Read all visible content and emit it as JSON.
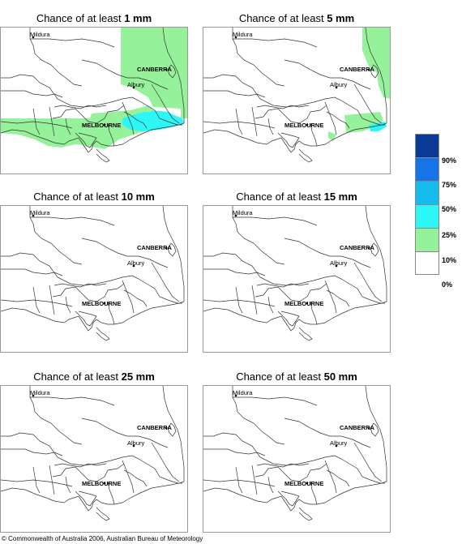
{
  "panels": [
    {
      "prefix": "Chance of at least ",
      "amount": "1 mm",
      "shading": [
        {
          "level": "10-25%",
          "polys": [
            [
              148,
              0,
              232,
              0,
              232,
              112,
              222,
              112,
              222,
              100,
              188,
              98,
              182,
              86,
              162,
              74,
              148,
              70
            ],
            [
              0,
              112,
              110,
              112,
              112,
              106,
              160,
              102,
              182,
              96,
              190,
              104,
              190,
              120,
              176,
              128,
              146,
              138,
              128,
              150,
              108,
              146,
              92,
              144,
              74,
              148,
              58,
              146,
              42,
              138,
              22,
              132,
              0,
              130
            ]
          ]
        },
        {
          "level": "25-50%",
          "polys": [
            [
              150,
              112,
              176,
              104,
              190,
              104,
              196,
              112,
              214,
              108,
              224,
              112,
              226,
              118,
              214,
              122,
              196,
              126,
              176,
              128,
              160,
              126,
              150,
              120
            ],
            [
              186,
              102,
              206,
              104,
              214,
              108,
              200,
              112,
              188,
              110
            ]
          ]
        },
        {
          "level": "50-75%",
          "polys": []
        }
      ]
    },
    {
      "prefix": "Chance of at least ",
      "amount": "5 mm",
      "shading": [
        {
          "level": "10-25%",
          "polys": [
            [
              196,
              0,
              232,
              0,
              232,
              88,
              222,
              86,
              216,
              72,
              214,
              56,
              204,
              48,
              196,
              28
            ],
            [
              174,
              108,
              218,
              104,
              222,
              114,
              212,
              122,
              196,
              128,
              176,
              130
            ],
            [
              154,
              128,
              164,
              132,
              160,
              140,
              154,
              136
            ]
          ]
        },
        {
          "level": "25-50%",
          "polys": [
            [
              204,
              120,
              224,
              116,
              226,
              122,
              216,
              128,
              206,
              128
            ]
          ]
        },
        {
          "level": "50-75%",
          "polys": []
        }
      ]
    },
    {
      "prefix": "Chance of at least ",
      "amount": "10 mm",
      "shading": []
    },
    {
      "prefix": "Chance of at least ",
      "amount": "15 mm",
      "shading": []
    },
    {
      "prefix": "Chance of at least ",
      "amount": "25 mm",
      "shading": []
    },
    {
      "prefix": "Chance of at least ",
      "amount": "50 mm",
      "shading": []
    }
  ],
  "cities": [
    {
      "name": "Mildura",
      "x": 40,
      "y": 12,
      "bold": false
    },
    {
      "name": "CANBERRA",
      "x": 204,
      "y": 52,
      "bold": true
    },
    {
      "name": "Albury",
      "x": 164,
      "y": 74,
      "bold": false
    },
    {
      "name": "MELBOURNE",
      "x": 128,
      "y": 120,
      "bold": true
    }
  ],
  "legend": {
    "colors": [
      "#0a3a96",
      "#1474e8",
      "#14bced",
      "#2cf6f6",
      "#96f29a",
      "#ffffff"
    ],
    "labels": [
      "90%",
      "75%",
      "50%",
      "25%",
      "10%",
      "0%"
    ]
  },
  "colors": {
    "10-25%": "#96f29a",
    "25-50%": "#2cf6f6",
    "50-75%": "#14bced",
    "outline": "#333333"
  },
  "footer": "© Commonwealth of Australia 2006, Australian Bureau of Meteorology"
}
